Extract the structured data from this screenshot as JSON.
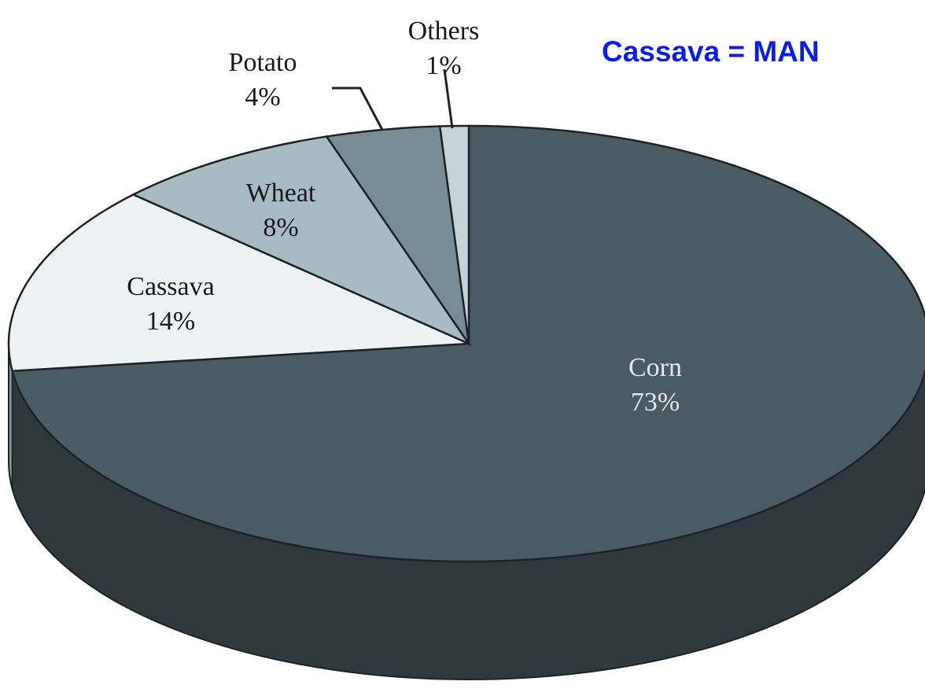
{
  "chart_data": {
    "type": "pie",
    "annotation": "Cassava = MAN",
    "categories": [
      "Corn",
      "Cassava",
      "Wheat",
      "Potato",
      "Others"
    ],
    "values": [
      73,
      14,
      8,
      4,
      1
    ],
    "value_labels": [
      "73%",
      "14%",
      "8%",
      "4%",
      "1%"
    ],
    "colors": [
      "#4b5b63",
      "#eef2f3",
      "#a8bbc2",
      "#788c95",
      "#c5d3d8"
    ]
  }
}
